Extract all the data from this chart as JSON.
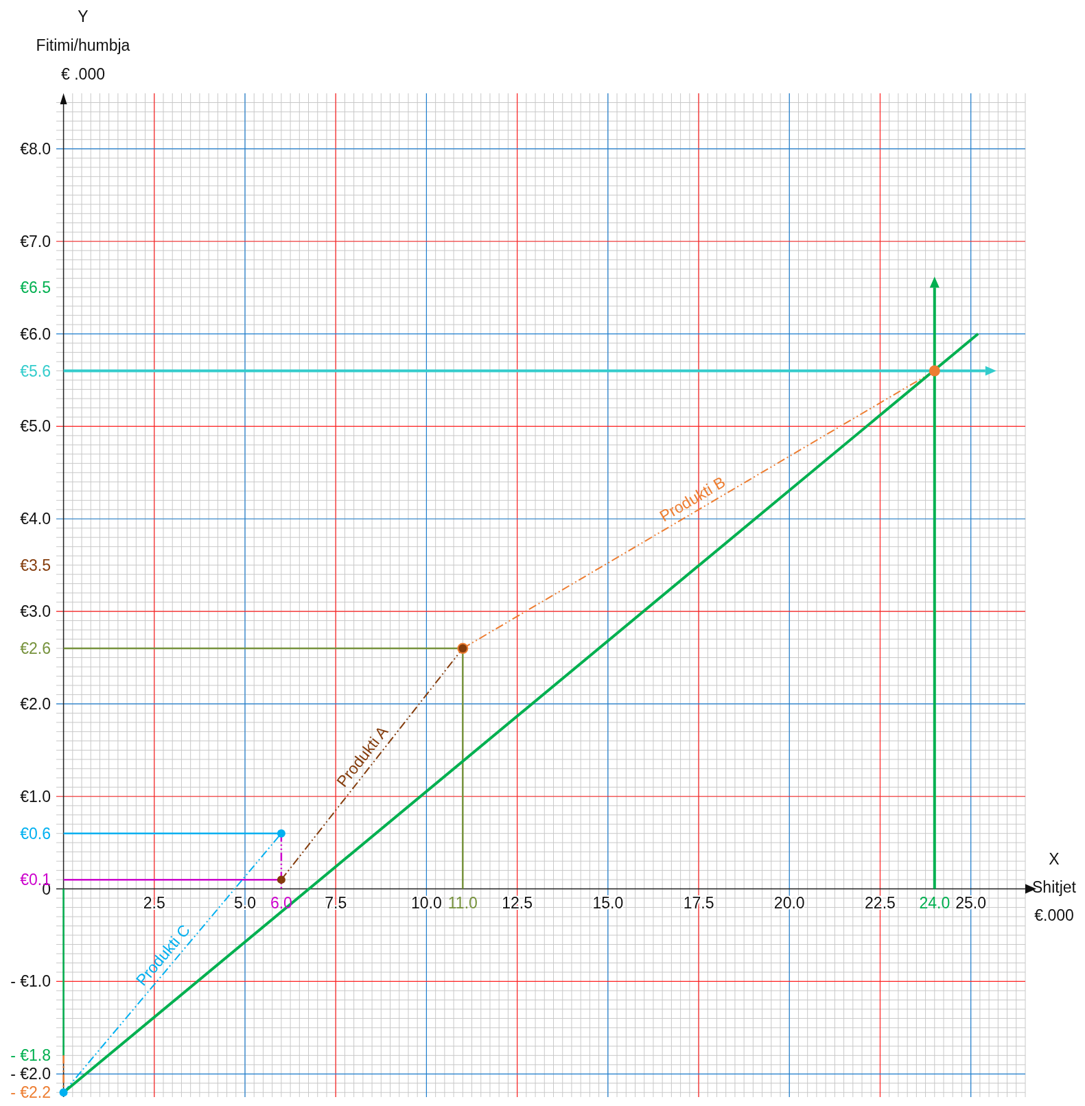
{
  "chart_data": {
    "type": "line",
    "xlabel": "X\nShitjet\n€.000",
    "ylabel": "Y\nFitimi/humbja\n€ .000",
    "xlim": [
      -0.2,
      26.5
    ],
    "ylim": [
      -2.25,
      8.6
    ],
    "xticks": [
      2.5,
      {
        "value": 5,
        "label": "5.0"
      },
      7.5,
      {
        "value": 10,
        "label": "10.0"
      },
      12.5,
      {
        "value": 15,
        "label": "15.0"
      },
      17.5,
      {
        "value": 20,
        "label": "20.0"
      },
      22.5,
      {
        "value": 25,
        "label": "25.0"
      }
    ],
    "yticks": [
      {
        "value": -2,
        "label": "- €2.0"
      },
      {
        "value": -1,
        "label": "- €1.0"
      },
      {
        "value": 0,
        "label": "0"
      },
      {
        "value": 1,
        "label": "€1.0"
      },
      {
        "value": 2,
        "label": "€2.0"
      },
      {
        "value": 3,
        "label": "€3.0"
      },
      {
        "value": 3.5,
        "label": "€3.5"
      },
      {
        "value": 4,
        "label": "€4.0"
      },
      {
        "value": 5,
        "label": "€5.0"
      },
      {
        "value": 6,
        "label": "€6.0"
      },
      {
        "value": 6.5,
        "label": "€6.5"
      },
      {
        "value": 7,
        "label": "€7.0"
      },
      {
        "value": 8,
        "label": "€8.0"
      }
    ],
    "grid": true,
    "legend": false,
    "series": [
      {
        "color": "#cc00cc",
        "x": [
          6,
          6
        ],
        "values": [
          0.6,
          0
        ],
        "line_style": "dashed"
      },
      {
        "color": "#cc00cc",
        "x": [
          0,
          6
        ],
        "values": [
          0.1,
          0.1
        ],
        "line_style": "solid"
      },
      {
        "color": "#00b0f0",
        "x": [
          0,
          6
        ],
        "values": [
          0.6,
          0.6
        ],
        "line_style": "solid"
      },
      {
        "color": "#76923c",
        "x": [
          11,
          11
        ],
        "values": [
          0,
          2.6
        ],
        "line_style": "solid"
      },
      {
        "color": "#76923c",
        "x": [
          0,
          11
        ],
        "values": [
          2.6,
          2.6
        ],
        "line_style": "solid"
      },
      {
        "color": "#00b050",
        "x": [
          24,
          24
        ],
        "values": [
          0,
          6.5
        ],
        "line_style": "solid",
        "marker": "triangle"
      },
      {
        "color": "#33cccc",
        "x": [
          0,
          25.4
        ],
        "values": [
          5.6,
          5.6
        ],
        "line_style": "solid",
        "marker": "triangle"
      },
      {
        "color": "#00b050",
        "x": [
          0,
          0
        ],
        "values": [
          0,
          -1.8
        ],
        "line_style": "solid"
      },
      {
        "color": "#ed7d31",
        "x": [
          0,
          0
        ],
        "values": [
          -1.8,
          -2.2
        ],
        "line_style": "dashed"
      },
      {
        "name": "Produkti C",
        "color": "#00b0f0",
        "x": [
          0,
          6
        ],
        "values": [
          -2.2,
          0.6
        ],
        "line_style": "dashed",
        "marker": "circle"
      },
      {
        "name": "Produkti B",
        "color": "#ed7d31",
        "x": [
          11,
          24
        ],
        "values": [
          2.6,
          5.6
        ],
        "line_style": "dashed",
        "marker": "circle"
      },
      {
        "name": "Produkti A",
        "color": "#843c0c",
        "x": [
          6,
          11
        ],
        "values": [
          0.1,
          2.6
        ],
        "line_style": "dashed",
        "marker": "circle"
      },
      {
        "color": "#00b050",
        "x": [
          0,
          25.2
        ],
        "values": [
          -2.2,
          6.0
        ],
        "line_style": "solid"
      }
    ],
    "annotations": [
      {
        "text": "€5.6",
        "x": 0,
        "y": 5.6
      },
      {
        "text": "€2.6",
        "x": 0,
        "y": 2.6
      },
      {
        "text": "€0.6",
        "x": 0,
        "y": 0.6
      },
      {
        "text": "€0.1",
        "x": 0,
        "y": 0.1
      },
      {
        "text": "- €1.8",
        "x": 0,
        "y": -1.8
      },
      {
        "text": "- €2.2",
        "x": 0,
        "y": -2.2
      },
      {
        "text": "6.0",
        "x": 6,
        "y": 0
      },
      {
        "text": "11.0",
        "x": 11,
        "y": 0
      },
      {
        "text": "24.0",
        "x": 24,
        "y": 0
      }
    ]
  }
}
